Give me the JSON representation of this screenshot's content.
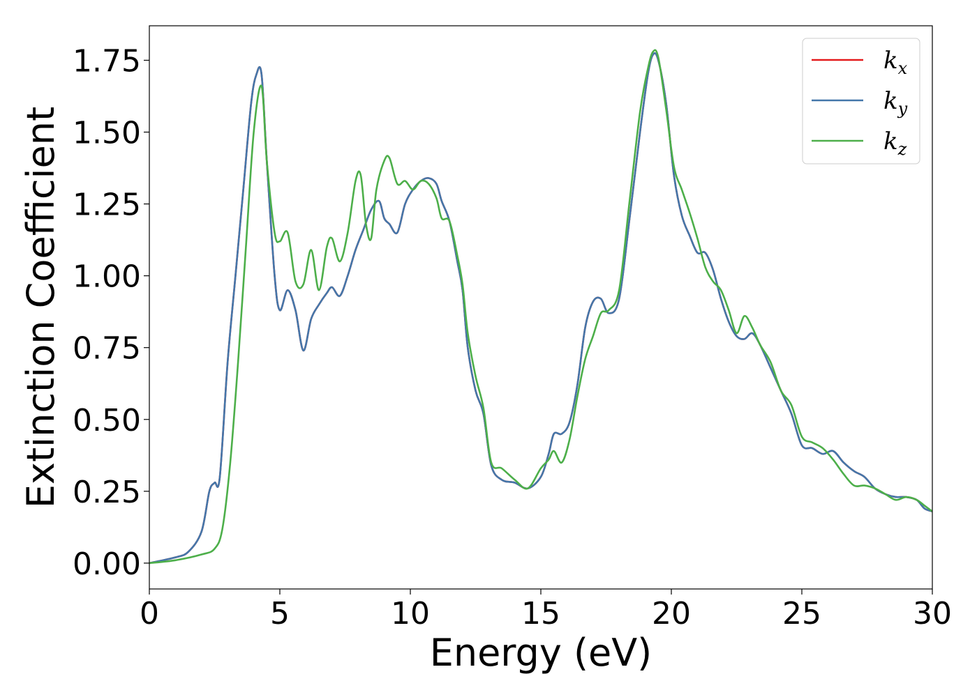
{
  "chart_data": {
    "type": "line",
    "title": "",
    "xlabel": "Energy (eV)",
    "ylabel": "Extinction Coefficient",
    "xlim": [
      0,
      30
    ],
    "ylim": [
      -0.09,
      1.87
    ],
    "xticks": [
      "0",
      "5",
      "10",
      "15",
      "20",
      "25",
      "30"
    ],
    "yticks": [
      "0.00",
      "0.25",
      "0.50",
      "0.75",
      "1.00",
      "1.25",
      "1.50",
      "1.75"
    ],
    "grid": false,
    "legend_position": "top-right",
    "series": [
      {
        "name": "k_x",
        "legend": {
          "base": "k",
          "sub": "x"
        },
        "color": "#e41a1c",
        "x": [
          0,
          1.0,
          1.5,
          2.0,
          2.3,
          2.5,
          2.7,
          3.0,
          3.3,
          3.6,
          3.9,
          4.1,
          4.3,
          4.5,
          4.8,
          5.0,
          5.3,
          5.6,
          5.9,
          6.2,
          6.5,
          6.8,
          7.0,
          7.3,
          7.6,
          7.9,
          8.2,
          8.5,
          8.8,
          9.0,
          9.2,
          9.5,
          9.8,
          10.1,
          10.4,
          10.7,
          11.0,
          11.2,
          11.5,
          11.8,
          12.0,
          12.2,
          12.5,
          12.8,
          13.1,
          13.5,
          14.0,
          14.5,
          15.0,
          15.3,
          15.5,
          15.8,
          16.1,
          16.4,
          16.7,
          17.0,
          17.3,
          17.6,
          18.0,
          18.4,
          18.8,
          19.1,
          19.3,
          19.5,
          19.8,
          20.1,
          20.4,
          20.7,
          21.0,
          21.3,
          21.6,
          21.9,
          22.2,
          22.5,
          22.8,
          23.1,
          23.4,
          23.8,
          24.2,
          24.6,
          25.0,
          25.4,
          25.8,
          26.2,
          26.6,
          27.0,
          27.4,
          27.8,
          28.2,
          28.6,
          29.0,
          29.4,
          29.7,
          30.0
        ],
        "y": [
          0.0,
          0.02,
          0.04,
          0.11,
          0.25,
          0.28,
          0.3,
          0.7,
          1.0,
          1.3,
          1.6,
          1.7,
          1.7,
          1.4,
          1.0,
          0.88,
          0.95,
          0.88,
          0.74,
          0.85,
          0.9,
          0.94,
          0.96,
          0.93,
          1.0,
          1.09,
          1.16,
          1.23,
          1.26,
          1.2,
          1.18,
          1.15,
          1.25,
          1.3,
          1.33,
          1.34,
          1.32,
          1.26,
          1.19,
          1.05,
          0.95,
          0.75,
          0.6,
          0.52,
          0.34,
          0.29,
          0.28,
          0.26,
          0.3,
          0.38,
          0.45,
          0.45,
          0.49,
          0.62,
          0.82,
          0.91,
          0.92,
          0.87,
          0.92,
          1.2,
          1.5,
          1.7,
          1.77,
          1.75,
          1.6,
          1.35,
          1.21,
          1.14,
          1.08,
          1.08,
          1.02,
          0.92,
          0.84,
          0.79,
          0.78,
          0.8,
          0.76,
          0.68,
          0.6,
          0.52,
          0.41,
          0.4,
          0.38,
          0.39,
          0.35,
          0.32,
          0.3,
          0.26,
          0.24,
          0.23,
          0.23,
          0.22,
          0.19,
          0.18
        ]
      },
      {
        "name": "k_y",
        "legend": {
          "base": "k",
          "sub": "y"
        },
        "color": "#4477aa",
        "x": [
          0,
          1.0,
          1.5,
          2.0,
          2.3,
          2.5,
          2.7,
          3.0,
          3.3,
          3.6,
          3.9,
          4.1,
          4.3,
          4.5,
          4.8,
          5.0,
          5.3,
          5.6,
          5.9,
          6.2,
          6.5,
          6.8,
          7.0,
          7.3,
          7.6,
          7.9,
          8.2,
          8.5,
          8.8,
          9.0,
          9.2,
          9.5,
          9.8,
          10.1,
          10.4,
          10.7,
          11.0,
          11.2,
          11.5,
          11.8,
          12.0,
          12.2,
          12.5,
          12.8,
          13.1,
          13.5,
          14.0,
          14.5,
          15.0,
          15.3,
          15.5,
          15.8,
          16.1,
          16.4,
          16.7,
          17.0,
          17.3,
          17.6,
          18.0,
          18.4,
          18.8,
          19.1,
          19.3,
          19.5,
          19.8,
          20.1,
          20.4,
          20.7,
          21.0,
          21.3,
          21.6,
          21.9,
          22.2,
          22.5,
          22.8,
          23.1,
          23.4,
          23.8,
          24.2,
          24.6,
          25.0,
          25.4,
          25.8,
          26.2,
          26.6,
          27.0,
          27.4,
          27.8,
          28.2,
          28.6,
          29.0,
          29.4,
          29.7,
          30.0
        ],
        "y": [
          0.0,
          0.02,
          0.04,
          0.11,
          0.25,
          0.28,
          0.3,
          0.7,
          1.0,
          1.3,
          1.6,
          1.7,
          1.7,
          1.4,
          1.0,
          0.88,
          0.95,
          0.88,
          0.74,
          0.85,
          0.9,
          0.94,
          0.96,
          0.93,
          1.0,
          1.09,
          1.16,
          1.23,
          1.26,
          1.2,
          1.18,
          1.15,
          1.25,
          1.3,
          1.33,
          1.34,
          1.32,
          1.26,
          1.19,
          1.05,
          0.95,
          0.75,
          0.6,
          0.52,
          0.34,
          0.29,
          0.28,
          0.26,
          0.3,
          0.38,
          0.45,
          0.45,
          0.49,
          0.62,
          0.82,
          0.91,
          0.92,
          0.87,
          0.92,
          1.2,
          1.5,
          1.7,
          1.77,
          1.75,
          1.6,
          1.35,
          1.21,
          1.14,
          1.08,
          1.08,
          1.02,
          0.92,
          0.84,
          0.79,
          0.78,
          0.8,
          0.76,
          0.68,
          0.6,
          0.52,
          0.41,
          0.4,
          0.38,
          0.39,
          0.35,
          0.32,
          0.3,
          0.26,
          0.24,
          0.23,
          0.23,
          0.22,
          0.19,
          0.18
        ]
      },
      {
        "name": "k_z",
        "legend": {
          "base": "k",
          "sub": "z"
        },
        "color": "#4daf4a",
        "x": [
          0,
          1.0,
          2.0,
          2.5,
          2.8,
          3.1,
          3.4,
          3.7,
          4.0,
          4.3,
          4.5,
          4.8,
          5.0,
          5.3,
          5.6,
          5.9,
          6.2,
          6.5,
          6.8,
          7.0,
          7.3,
          7.6,
          7.9,
          8.1,
          8.3,
          8.5,
          8.7,
          9.0,
          9.2,
          9.5,
          9.8,
          10.1,
          10.4,
          10.7,
          11.0,
          11.2,
          11.5,
          11.8,
          12.0,
          12.2,
          12.5,
          12.8,
          13.1,
          13.5,
          14.0,
          14.5,
          15.0,
          15.3,
          15.5,
          15.8,
          16.1,
          16.4,
          16.7,
          17.0,
          17.3,
          17.6,
          18.0,
          18.4,
          18.8,
          19.1,
          19.3,
          19.5,
          19.8,
          20.1,
          20.4,
          20.7,
          21.0,
          21.3,
          21.6,
          21.9,
          22.2,
          22.5,
          22.8,
          23.1,
          23.4,
          23.8,
          24.2,
          24.6,
          25.0,
          25.4,
          25.8,
          26.2,
          26.6,
          27.0,
          27.4,
          27.8,
          28.2,
          28.6,
          29.0,
          29.4,
          29.7,
          30.0
        ],
        "y": [
          0.0,
          0.01,
          0.03,
          0.05,
          0.12,
          0.35,
          0.7,
          1.1,
          1.5,
          1.66,
          1.4,
          1.15,
          1.12,
          1.15,
          0.98,
          0.97,
          1.09,
          0.95,
          1.1,
          1.13,
          1.05,
          1.15,
          1.33,
          1.35,
          1.18,
          1.13,
          1.3,
          1.4,
          1.41,
          1.32,
          1.33,
          1.3,
          1.33,
          1.32,
          1.27,
          1.2,
          1.19,
          1.07,
          0.97,
          0.8,
          0.65,
          0.54,
          0.35,
          0.33,
          0.29,
          0.26,
          0.33,
          0.36,
          0.39,
          0.35,
          0.43,
          0.58,
          0.71,
          0.79,
          0.87,
          0.88,
          0.95,
          1.26,
          1.57,
          1.72,
          1.78,
          1.76,
          1.58,
          1.38,
          1.3,
          1.22,
          1.13,
          1.03,
          0.98,
          0.95,
          0.88,
          0.8,
          0.86,
          0.82,
          0.76,
          0.7,
          0.6,
          0.55,
          0.44,
          0.42,
          0.4,
          0.36,
          0.31,
          0.27,
          0.27,
          0.26,
          0.24,
          0.22,
          0.23,
          0.22,
          0.2,
          0.18
        ]
      }
    ]
  }
}
